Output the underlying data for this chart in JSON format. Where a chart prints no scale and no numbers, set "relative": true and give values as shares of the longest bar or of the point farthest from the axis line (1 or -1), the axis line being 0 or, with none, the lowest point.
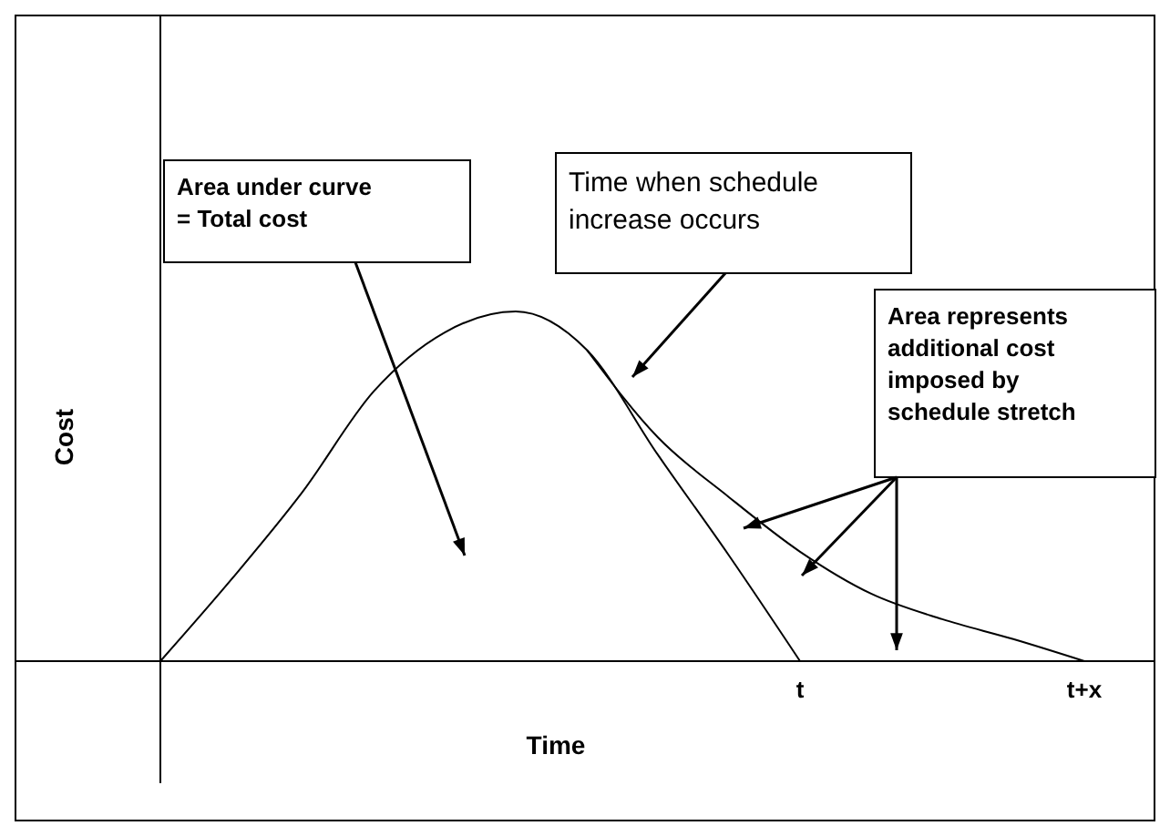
{
  "chart_data": {
    "type": "line",
    "relative": true,
    "xlabel": "Time",
    "ylabel": "Cost",
    "categories": [
      null,
      null,
      null,
      null,
      null,
      null,
      null,
      null,
      null,
      "t",
      null,
      null,
      null,
      "t+x",
      null
    ],
    "series": [
      {
        "color": "#000000",
        "values": [
          0,
          0.234,
          0.484,
          0.771,
          0.94,
          1,
          0.89,
          0.59,
          0.302,
          0,
          null,
          null,
          null,
          null,
          null
        ]
      },
      {
        "color": "#000000",
        "values": [
          null,
          null,
          null,
          null,
          null,
          null,
          0.89,
          0.64,
          0.469,
          0.313,
          0.193,
          0.12,
          0.063,
          0,
          null
        ]
      }
    ],
    "annotations": [
      "Area under curve\n= Total cost",
      "Time when schedule\nincrease occurs",
      "Area represents\nadditional cost\nimposed by\nschedule stretch"
    ],
    "marker": "none",
    "line_style": "solid"
  }
}
